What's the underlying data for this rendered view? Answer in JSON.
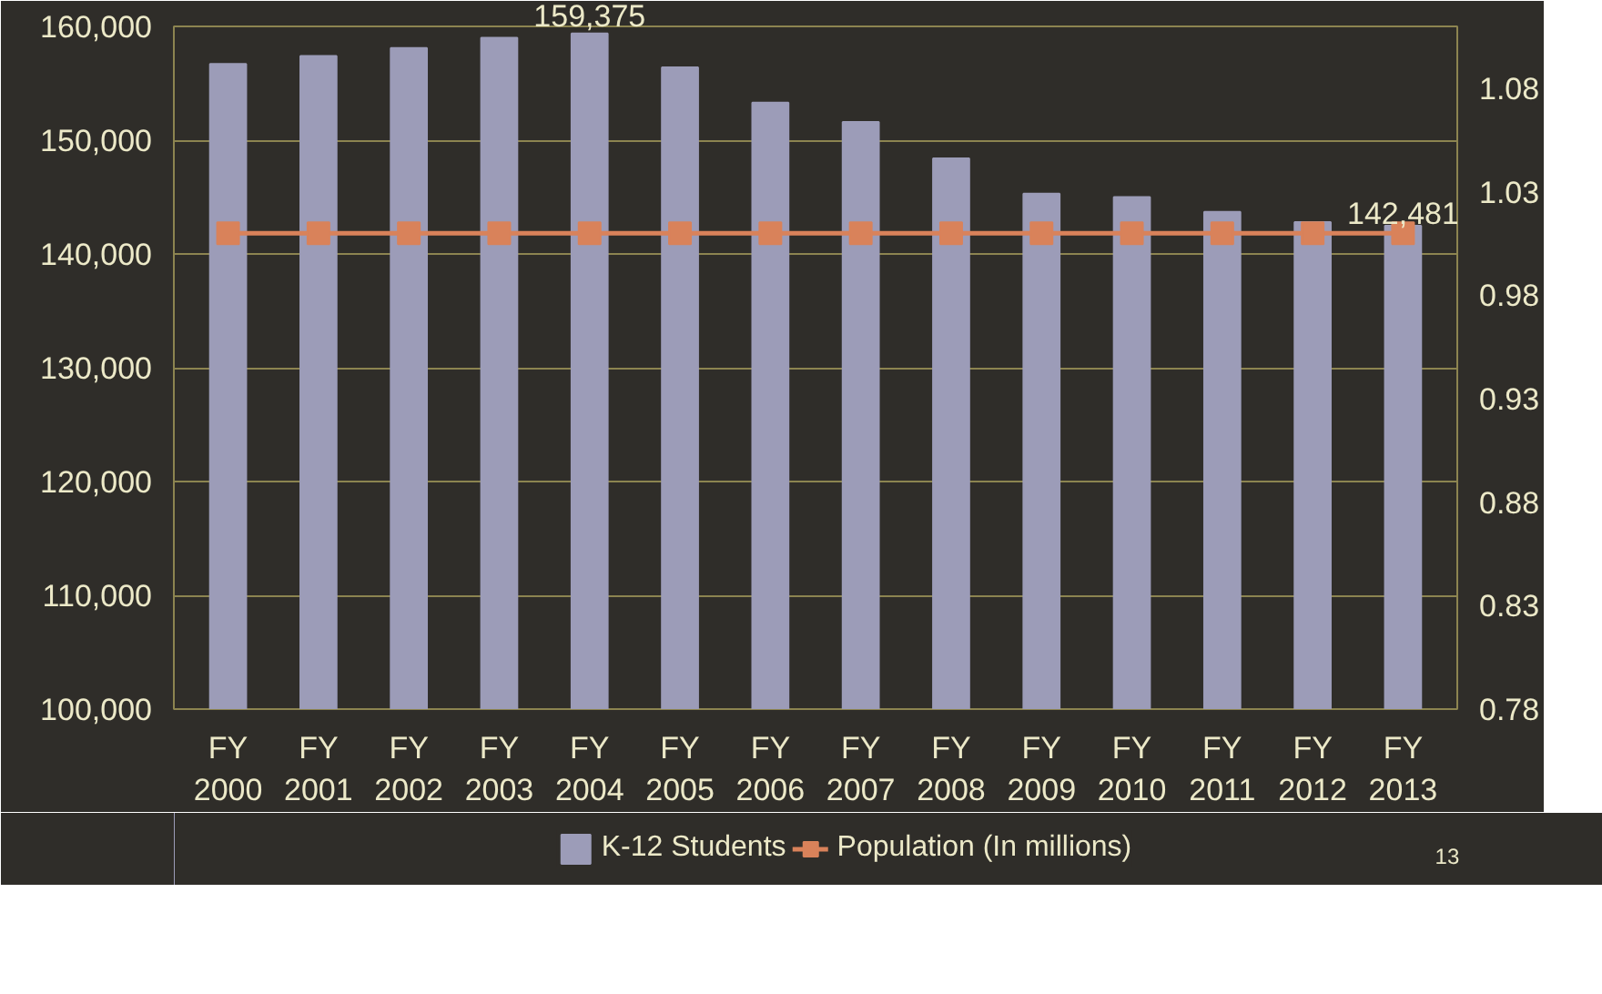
{
  "chart_data": {
    "type": "bar",
    "categories": [
      "FY 2000",
      "FY 2001",
      "FY 2002",
      "FY 2003",
      "FY 2004",
      "FY 2005",
      "FY 2006",
      "FY 2007",
      "FY 2008",
      "FY 2009",
      "FY 2010",
      "FY 2011",
      "FY 2012",
      "FY 2013"
    ],
    "series": [
      {
        "name": "K-12 Students",
        "color": "#9c9cb8",
        "values": [
          156700,
          157400,
          158100,
          159000,
          159375,
          156400,
          153300,
          151600,
          148400,
          145300,
          145000,
          143700,
          142800,
          142481
        ],
        "value_labels": [
          null,
          null,
          null,
          null,
          "159,375",
          null,
          null,
          null,
          null,
          null,
          null,
          null,
          null,
          "142,481"
        ]
      },
      {
        "name": "Population (In millions)",
        "type": "line",
        "axis": "y2",
        "color": "#d9825a",
        "marker": "square",
        "values": [
          1.01,
          1.01,
          1.01,
          1.01,
          1.01,
          1.01,
          1.01,
          1.01,
          1.01,
          1.01,
          1.01,
          1.01,
          1.01,
          1.01
        ]
      }
    ],
    "ylim": [
      100000,
      160000
    ],
    "yticks": [
      {
        "value": 100000,
        "label": "100,000"
      },
      {
        "value": 110000,
        "label": "110,000"
      },
      {
        "value": 120000,
        "label": "120,000"
      },
      {
        "value": 130000,
        "label": "130,000"
      },
      {
        "value": 140000,
        "label": "140,000"
      },
      {
        "value": 150000,
        "label": "150,000"
      },
      {
        "value": 160000,
        "label": "160,000"
      }
    ],
    "y2lim": [
      0.78,
      1.11
    ],
    "y2ticks": [
      0.78,
      0.83,
      0.88,
      0.93,
      0.98,
      1.03,
      1.08
    ],
    "grid": "y",
    "legend": "bottom",
    "annotations": [
      "13"
    ]
  }
}
